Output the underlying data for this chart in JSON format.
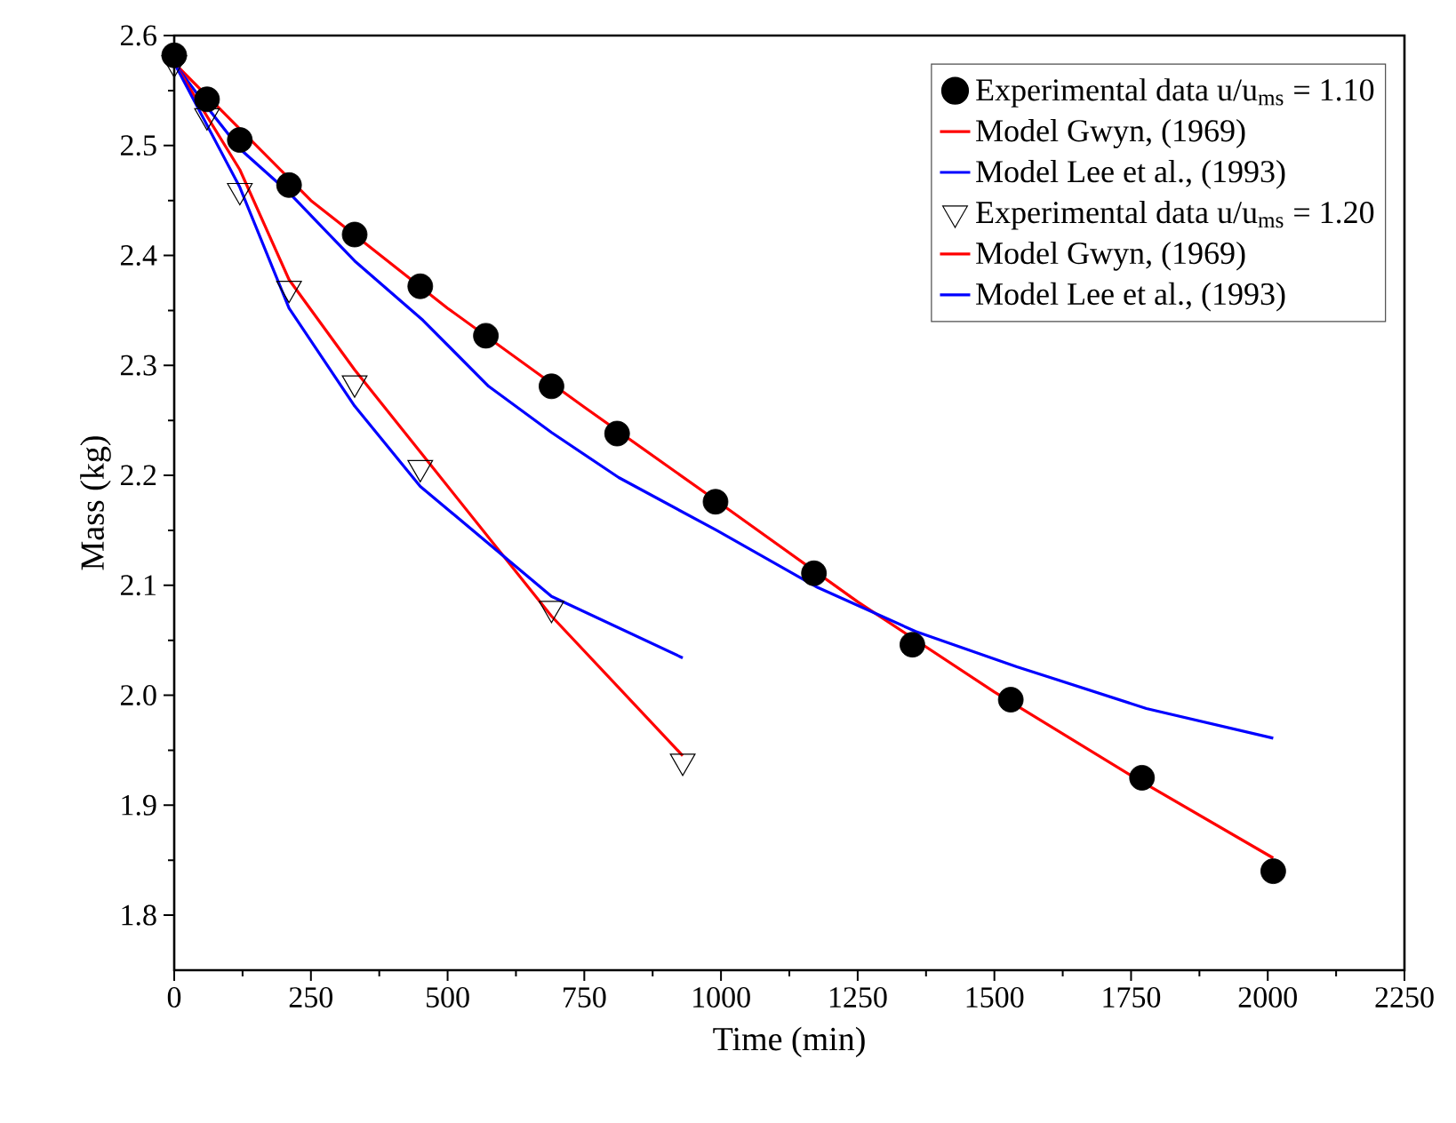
{
  "chart_data": {
    "type": "line",
    "xlabel": "Time (min)",
    "ylabel": "Mass (kg)",
    "xlim": [
      0,
      2250
    ],
    "xticks": [
      0,
      250,
      500,
      750,
      1000,
      1250,
      1500,
      1750,
      2000,
      2250
    ],
    "ylim": [
      1.75,
      2.6
    ],
    "yticks": [
      1.8,
      1.9,
      {
        "value": 2.0,
        "label": "2.0"
      },
      2.1,
      2.2,
      2.3,
      2.4,
      2.5,
      2.6
    ],
    "grid": false,
    "legend": "top right",
    "series": [
      {
        "name": "Experimental data u/u$_{ms}$ = 1.10",
        "type": "scatter",
        "marker": "circle",
        "color": "#000000",
        "x": [
          0,
          60,
          120,
          210,
          330,
          450,
          570,
          690,
          810,
          990,
          1170,
          1350,
          1530,
          1770,
          2010
        ],
        "values": [
          2.582,
          2.542,
          2.505,
          2.464,
          2.419,
          2.372,
          2.327,
          2.281,
          2.238,
          2.176,
          2.111,
          2.046,
          1.996,
          1.925,
          1.84
        ]
      },
      {
        "name": "Model Gwyn, (1969)",
        "color": "#ff0000",
        "x": [
          0,
          250,
          500,
          750,
          1000,
          1250,
          1500,
          1750,
          2010
        ],
        "values": [
          2.575,
          2.45,
          2.352,
          2.262,
          2.174,
          2.085,
          2.003,
          1.927,
          1.852
        ]
      },
      {
        "name": "Model Lee et al., (1993)",
        "color": "#0000ff",
        "x": [
          0,
          60,
          120,
          210,
          330,
          455,
          575,
          690,
          813,
          992,
          1177,
          1356,
          1541,
          1778,
          2010
        ],
        "values": [
          2.575,
          2.535,
          2.497,
          2.457,
          2.395,
          2.341,
          2.281,
          2.239,
          2.198,
          2.15,
          2.098,
          2.058,
          2.026,
          1.988,
          1.961
        ]
      },
      {
        "name": "Experimental data u/u$_{ms}$ = 1.20",
        "type": "scatter",
        "marker": "triangle",
        "color": "#000000",
        "x": [
          0,
          60,
          120,
          210,
          330,
          450,
          690,
          930
        ],
        "values": [
          2.575,
          2.527,
          2.459,
          2.37,
          2.284,
          2.207,
          2.079,
          1.94
        ]
      },
      {
        "name": "Model Gwyn, (1969)",
        "color": "#ff0000",
        "x": [
          0,
          120,
          210,
          330,
          690,
          930
        ],
        "values": [
          2.575,
          2.478,
          2.378,
          2.296,
          2.072,
          1.945
        ]
      },
      {
        "name": "Model Lee et al., (1993)",
        "color": "#0000ff",
        "x": [
          0,
          120,
          210,
          330,
          450,
          690,
          930
        ],
        "values": [
          2.575,
          2.462,
          2.352,
          2.263,
          2.19,
          2.09,
          2.034
        ]
      }
    ]
  }
}
